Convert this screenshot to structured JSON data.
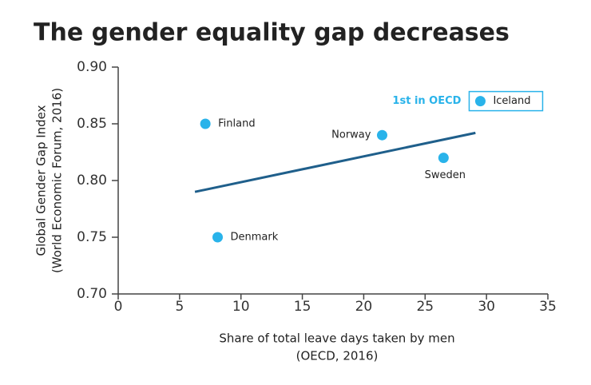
{
  "chart_data": {
    "type": "scatter",
    "title": "The gender equality gap decreases",
    "xlabel": [
      "Share of total leave days taken by men",
      "(OECD, 2016)"
    ],
    "ylabel": [
      "Global Gender Gap Index",
      "(World Economic Forum, 2016)"
    ],
    "labels": [
      "Finland",
      "Denmark",
      "Norway",
      "Sweden",
      "Iceland"
    ],
    "x": [
      7.1,
      8.1,
      21.5,
      26.5,
      29.5
    ],
    "values": [
      0.85,
      0.75,
      0.84,
      0.82,
      0.87
    ],
    "color": "#29b3ea",
    "highlight_index": 4,
    "annotation": "1st in OECD",
    "trendline": {
      "x": [
        6.25,
        29.1
      ],
      "values": [
        0.79,
        0.842
      ],
      "color": "#1f5f8b"
    },
    "xlim": [
      0,
      35
    ],
    "xticks": [
      0,
      5,
      10,
      15,
      20,
      25,
      30,
      35
    ],
    "ylim": [
      0.7,
      0.9
    ],
    "yticks": [
      {
        "value": 0.7,
        "label": "0.70"
      },
      0.75,
      {
        "value": 0.8,
        "label": "0.80"
      },
      0.85,
      {
        "value": 0.9,
        "label": "0.90"
      }
    ]
  }
}
